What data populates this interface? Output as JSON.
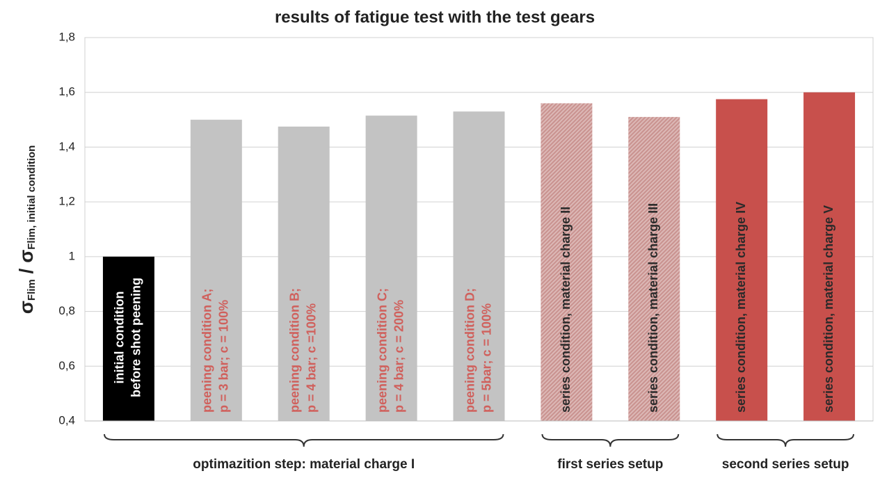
{
  "chart_data": {
    "type": "bar",
    "title": "results of fatigue test with the test gears",
    "y_label_parts": [
      "σ",
      "Flim",
      " / ",
      "σ",
      "Flim, initial condition"
    ],
    "bar_labels": [
      [
        "initial condition",
        "before shot peening"
      ],
      [
        "peening condition A;",
        "p = 3 bar; c = 100%"
      ],
      [
        "peening condition B;",
        "p = 4 bar; c =100%"
      ],
      [
        "peening condition C;",
        "p = 4 bar; c = 200%"
      ],
      [
        "peening condition D;",
        "p = 5bar; c = 100%"
      ],
      [
        "series condition,  material charge II"
      ],
      [
        "series condition,  material charge III"
      ],
      [
        "series condition,  material charge IV"
      ],
      [
        "series condition,  material charge V"
      ]
    ],
    "values": [
      1.0,
      1.5,
      1.475,
      1.515,
      1.53,
      1.56,
      1.51,
      1.575,
      1.6
    ],
    "colors": [
      "#000000",
      "#c3c3c3",
      "#c3c3c3",
      "#c3c3c3",
      "#c3c3c3",
      "#c9928f",
      "#c9928f",
      "#c8504c",
      "#c8504c"
    ],
    "hatched": [
      false,
      false,
      false,
      false,
      false,
      true,
      true,
      false,
      false
    ],
    "label_colors": [
      "#ffffff",
      "#d0605c",
      "#d0605c",
      "#d0605c",
      "#d0605c",
      "#2a2a2a",
      "#2a2a2a",
      "#2a2a2a",
      "#2a2a2a"
    ],
    "groups": [
      {
        "label": "optimazition step: material charge I",
        "start": 0,
        "end": 4
      },
      {
        "label": "first series setup",
        "start": 5,
        "end": 6
      },
      {
        "label": "second series setup",
        "start": 7,
        "end": 8
      }
    ],
    "ylim": [
      0.4,
      1.8
    ],
    "yticks": [
      {
        "value": 0.4,
        "label": "0,4"
      },
      {
        "value": 0.6,
        "label": "0,6"
      },
      {
        "value": 0.8,
        "label": "0,8"
      },
      1,
      {
        "value": 1.2,
        "label": "1,2"
      },
      {
        "value": 1.4,
        "label": "1,4"
      },
      {
        "value": 1.6,
        "label": "1,6"
      },
      {
        "value": 1.8,
        "label": "1,8"
      }
    ],
    "grid": true
  }
}
